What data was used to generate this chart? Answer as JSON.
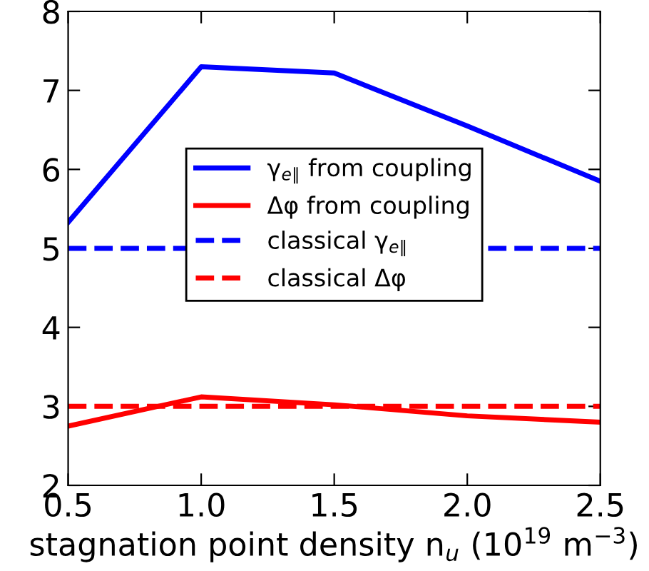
{
  "chart_data": {
    "type": "line",
    "xlabel": "stagnation point density n$_{u}$ (10$^{19}$ m$^{−3}$)",
    "x": [
      0.5,
      1.0,
      1.5,
      2.0,
      2.5
    ],
    "series": [
      {
        "name": "γ$_{e∥}$ from coupling",
        "color": "#0000ff",
        "values": [
          5.33,
          7.3,
          7.22,
          6.55,
          5.85
        ],
        "line_style": "solid"
      },
      {
        "name": "Δφ from coupling",
        "color": "#ff0000",
        "values": [
          2.75,
          3.12,
          3.02,
          2.88,
          2.8
        ],
        "line_style": "solid"
      }
    ],
    "ref_lines": [
      {
        "axis": "y",
        "value": 5,
        "label": "classical γ$_{e∥}$",
        "color": "#0000ff",
        "line_style": "dashed"
      },
      {
        "axis": "y",
        "value": 3,
        "label": "classical Δφ",
        "color": "#ff0000",
        "line_style": "dashed"
      }
    ],
    "xlim": [
      0.5,
      2.5
    ],
    "ylim": [
      2,
      8
    ],
    "xticks": [
      {
        "value": 0.5,
        "label": "0.5"
      },
      {
        "value": 1.0,
        "label": "1.0"
      },
      {
        "value": 1.5,
        "label": "1.5"
      },
      {
        "value": 2.0,
        "label": "2.0"
      },
      {
        "value": 2.5,
        "label": "2.5"
      }
    ],
    "yticks": [
      2,
      3,
      4,
      5,
      6,
      7,
      8
    ],
    "legend": "center",
    "marker": "none",
    "grid": false
  }
}
